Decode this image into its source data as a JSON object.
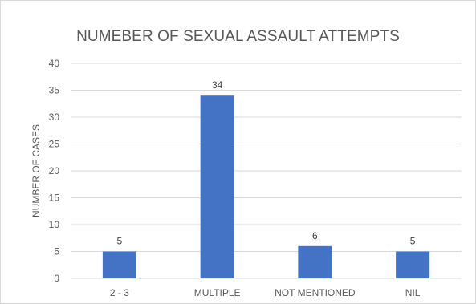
{
  "chart_data": {
    "type": "bar",
    "title": "NUMEBER OF SEXUAL ASSAULT ATTEMPTS",
    "xlabel": "",
    "ylabel": "NUMBER OF CASES",
    "categories": [
      "2 - 3",
      "MULTIPLE",
      "NOT MENTIONED",
      "NIL"
    ],
    "values": [
      5,
      34,
      6,
      5
    ],
    "ylim": [
      0,
      40
    ],
    "yticks": [
      0,
      5,
      10,
      15,
      20,
      25,
      30,
      35,
      40
    ],
    "data_labels": true,
    "grid": true,
    "legend": "none",
    "bar_color": "#4472c4",
    "grid_color": "#d9d9d9"
  }
}
